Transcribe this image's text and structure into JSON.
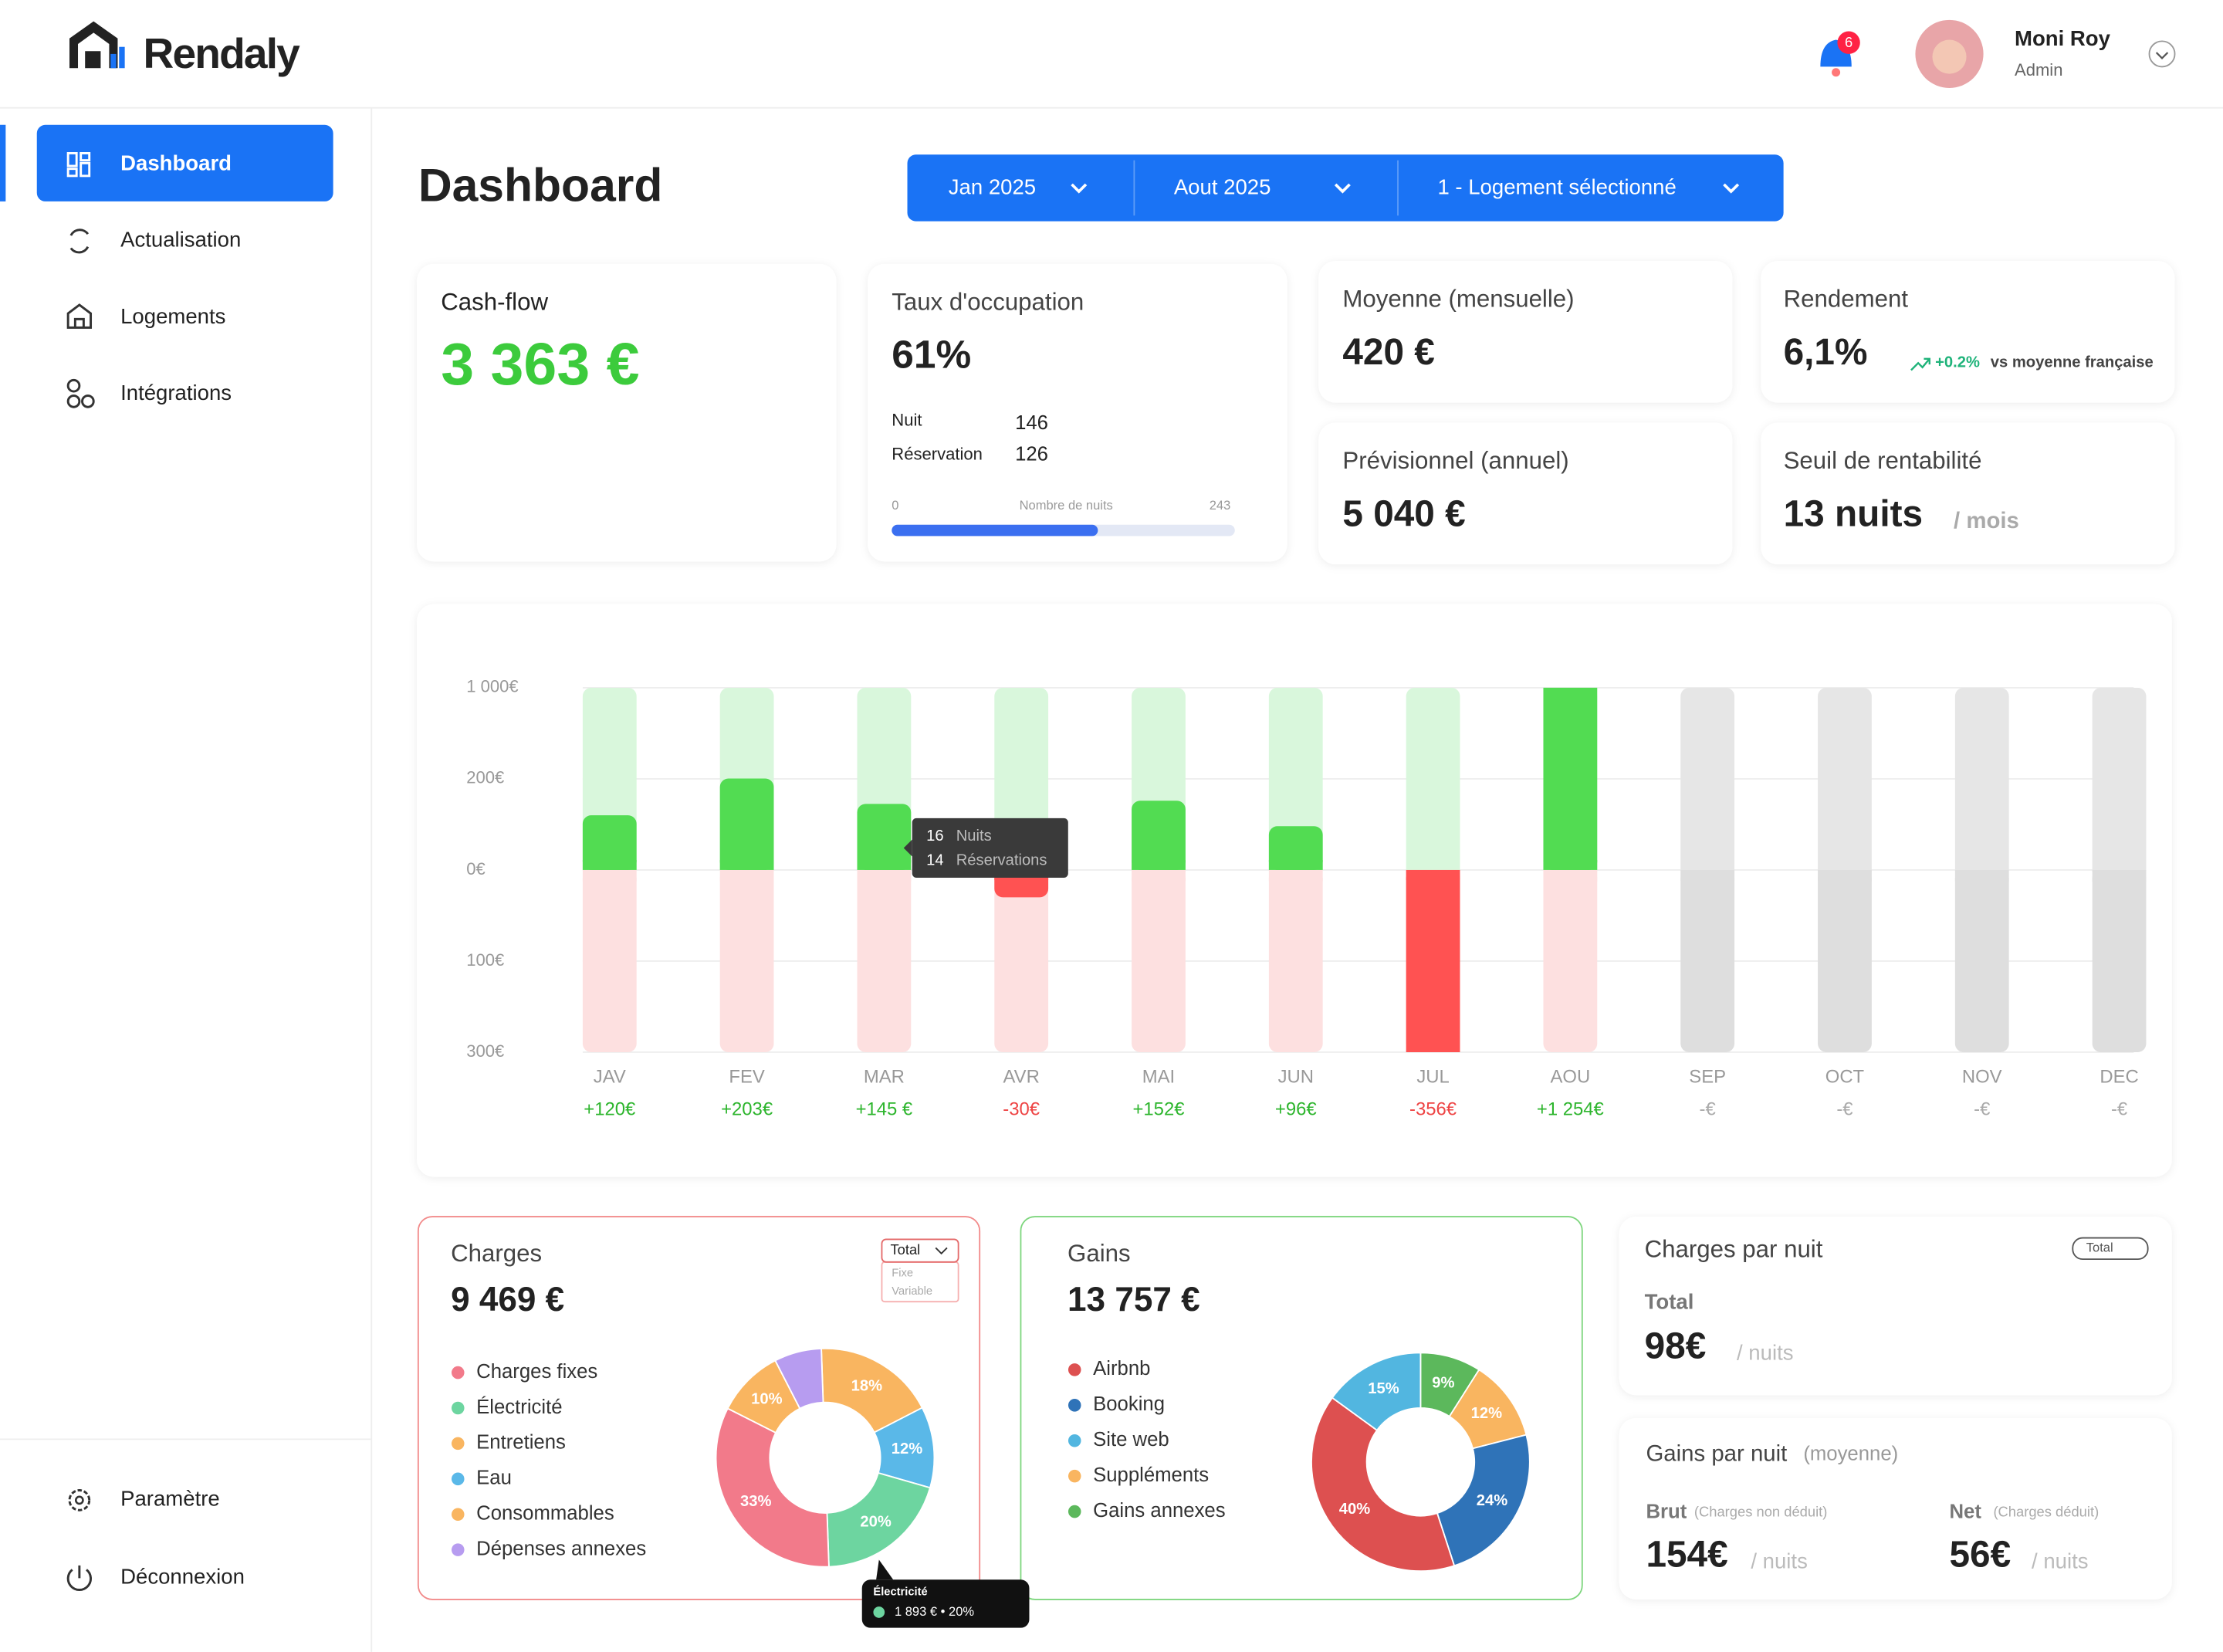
{
  "header": {
    "brand": "Rendaly",
    "notifications": 6,
    "user_name": "Moni Roy",
    "user_role": "Admin"
  },
  "sidebar": {
    "items": [
      "Dashboard",
      "Actualisation",
      "Logements",
      "Intégrations"
    ],
    "bottom": [
      "Paramètre",
      "Déconnexion"
    ]
  },
  "page_title": "Dashboard",
  "filters": [
    "Jan 2025",
    "Aout 2025",
    "1 - Logement sélectionné"
  ],
  "cards": {
    "cashflow": {
      "label": "Cash-flow",
      "value": "3 363 €"
    },
    "occupation": {
      "label": "Taux d'occupation",
      "value": "61%",
      "nights_label": "Nuit",
      "nights": 146,
      "reservations_label": "Réservation",
      "reservations": 126,
      "scale_min": 0,
      "scale_caption": "Nombre de nuits",
      "scale_max": 243
    },
    "monthly": {
      "label": "Moyenne (mensuelle)",
      "value": "420 €"
    },
    "yield": {
      "label": "Rendement",
      "value": "6,1%",
      "trend": "+0.2%",
      "trend_text": "vs moyenne française"
    },
    "forecast": {
      "label": "Prévisionnel (annuel)",
      "value": "5 040 €"
    },
    "breakeven": {
      "label": "Seuil de rentabilité",
      "value": "13 nuits",
      "unit": "/ mois"
    }
  },
  "chart": {
    "type": "bar",
    "categories": [
      "JAV",
      "FEV",
      "MAR",
      "AVR",
      "MAI",
      "JUN",
      "JUL",
      "AOU",
      "SEP",
      "OCT",
      "NOV",
      "DEC"
    ],
    "values": [
      120,
      203,
      145,
      -30,
      152,
      96,
      -356,
      1254,
      null,
      null,
      null,
      null
    ],
    "value_labels": [
      "+120€",
      "+203€",
      "+145 €",
      "-30€",
      "+152€",
      "+96€",
      "-356€",
      "+1 254€",
      "-€",
      "-€",
      "-€",
      "-€"
    ],
    "positive_color": "#52dc52",
    "negative_color": "#ff5252",
    "ylim": [
      -300,
      1000
    ],
    "yticks": [
      {
        "value": 1000,
        "label": "1 000€"
      },
      {
        "value": 200,
        "label": "200€"
      },
      {
        "value": 0,
        "label": "0€"
      },
      {
        "value": -100,
        "label": "100€"
      },
      {
        "value": -300,
        "label": "300€"
      }
    ],
    "grid": true,
    "tooltip": {
      "category": "AVR",
      "nights": 16,
      "nights_label": "Nuits",
      "reservations": 14,
      "reservations_label": "Réservations"
    }
  },
  "charges": {
    "title": "Charges",
    "total": "9 469 €",
    "selector": "Total",
    "options": [
      "Fixe",
      "Variable"
    ],
    "legend": [
      {
        "name": "Charges fixes",
        "color": "#f27a8a"
      },
      {
        "name": "Électricité",
        "color": "#6dd5a0"
      },
      {
        "name": "Entretiens",
        "color": "#f9b560"
      },
      {
        "name": "Eau",
        "color": "#5ab8e8"
      },
      {
        "name": "Consommables",
        "color": "#f9b560"
      },
      {
        "name": "Dépenses annexes",
        "color": "#b79cf0"
      }
    ],
    "pie": {
      "type": "pie",
      "categories": [
        "Entretiens",
        "Eau",
        "Électricité",
        "Charges fixes",
        "Consommables",
        "Dépenses annexes"
      ],
      "values": [
        18,
        12,
        20,
        33,
        10,
        7
      ],
      "value_labels": [
        "18%",
        "12%",
        "20%",
        "33%",
        "10%",
        null
      ],
      "colors": [
        "#f9b560",
        "#5ab8e8",
        "#6dd5a0",
        "#f27a8a",
        "#f9b560",
        "#b79cf0"
      ]
    },
    "tooltip": {
      "title": "Électricité",
      "text": "1 893 € • 20%"
    }
  },
  "gains": {
    "title": "Gains",
    "total": "13 757 €",
    "legend": [
      {
        "name": "Airbnb",
        "color": "#dd5050"
      },
      {
        "name": "Booking",
        "color": "#2f73b8"
      },
      {
        "name": "Site web",
        "color": "#52b6e0"
      },
      {
        "name": "Suppléments",
        "color": "#f9b560"
      },
      {
        "name": "Gains annexes",
        "color": "#5cb85c"
      }
    ],
    "pie": {
      "type": "pie",
      "categories": [
        "Gains annexes",
        "Suppléments",
        "Booking",
        "Airbnb",
        "Site web"
      ],
      "values": [
        9,
        12,
        24,
        40,
        15
      ],
      "value_labels": [
        "9%",
        "12%",
        "24%",
        "40%",
        "15%"
      ],
      "colors": [
        "#5cb85c",
        "#f9b560",
        "#2f73b8",
        "#dd5050",
        "#52b6e0"
      ]
    }
  },
  "charges_per_night": {
    "title": "Charges par nuit",
    "badge": "Total",
    "label": "Total",
    "value": "98€",
    "unit": "/ nuits"
  },
  "gains_per_night": {
    "title": "Gains par nuit",
    "subtitle": "(moyenne)",
    "gross": {
      "label": "Brut",
      "note": "(Charges non déduit)",
      "value": "154€",
      "unit": "/ nuits"
    },
    "net": {
      "label": "Net",
      "note": "(Charges déduit)",
      "value": "56€",
      "unit": "/ nuits"
    }
  }
}
